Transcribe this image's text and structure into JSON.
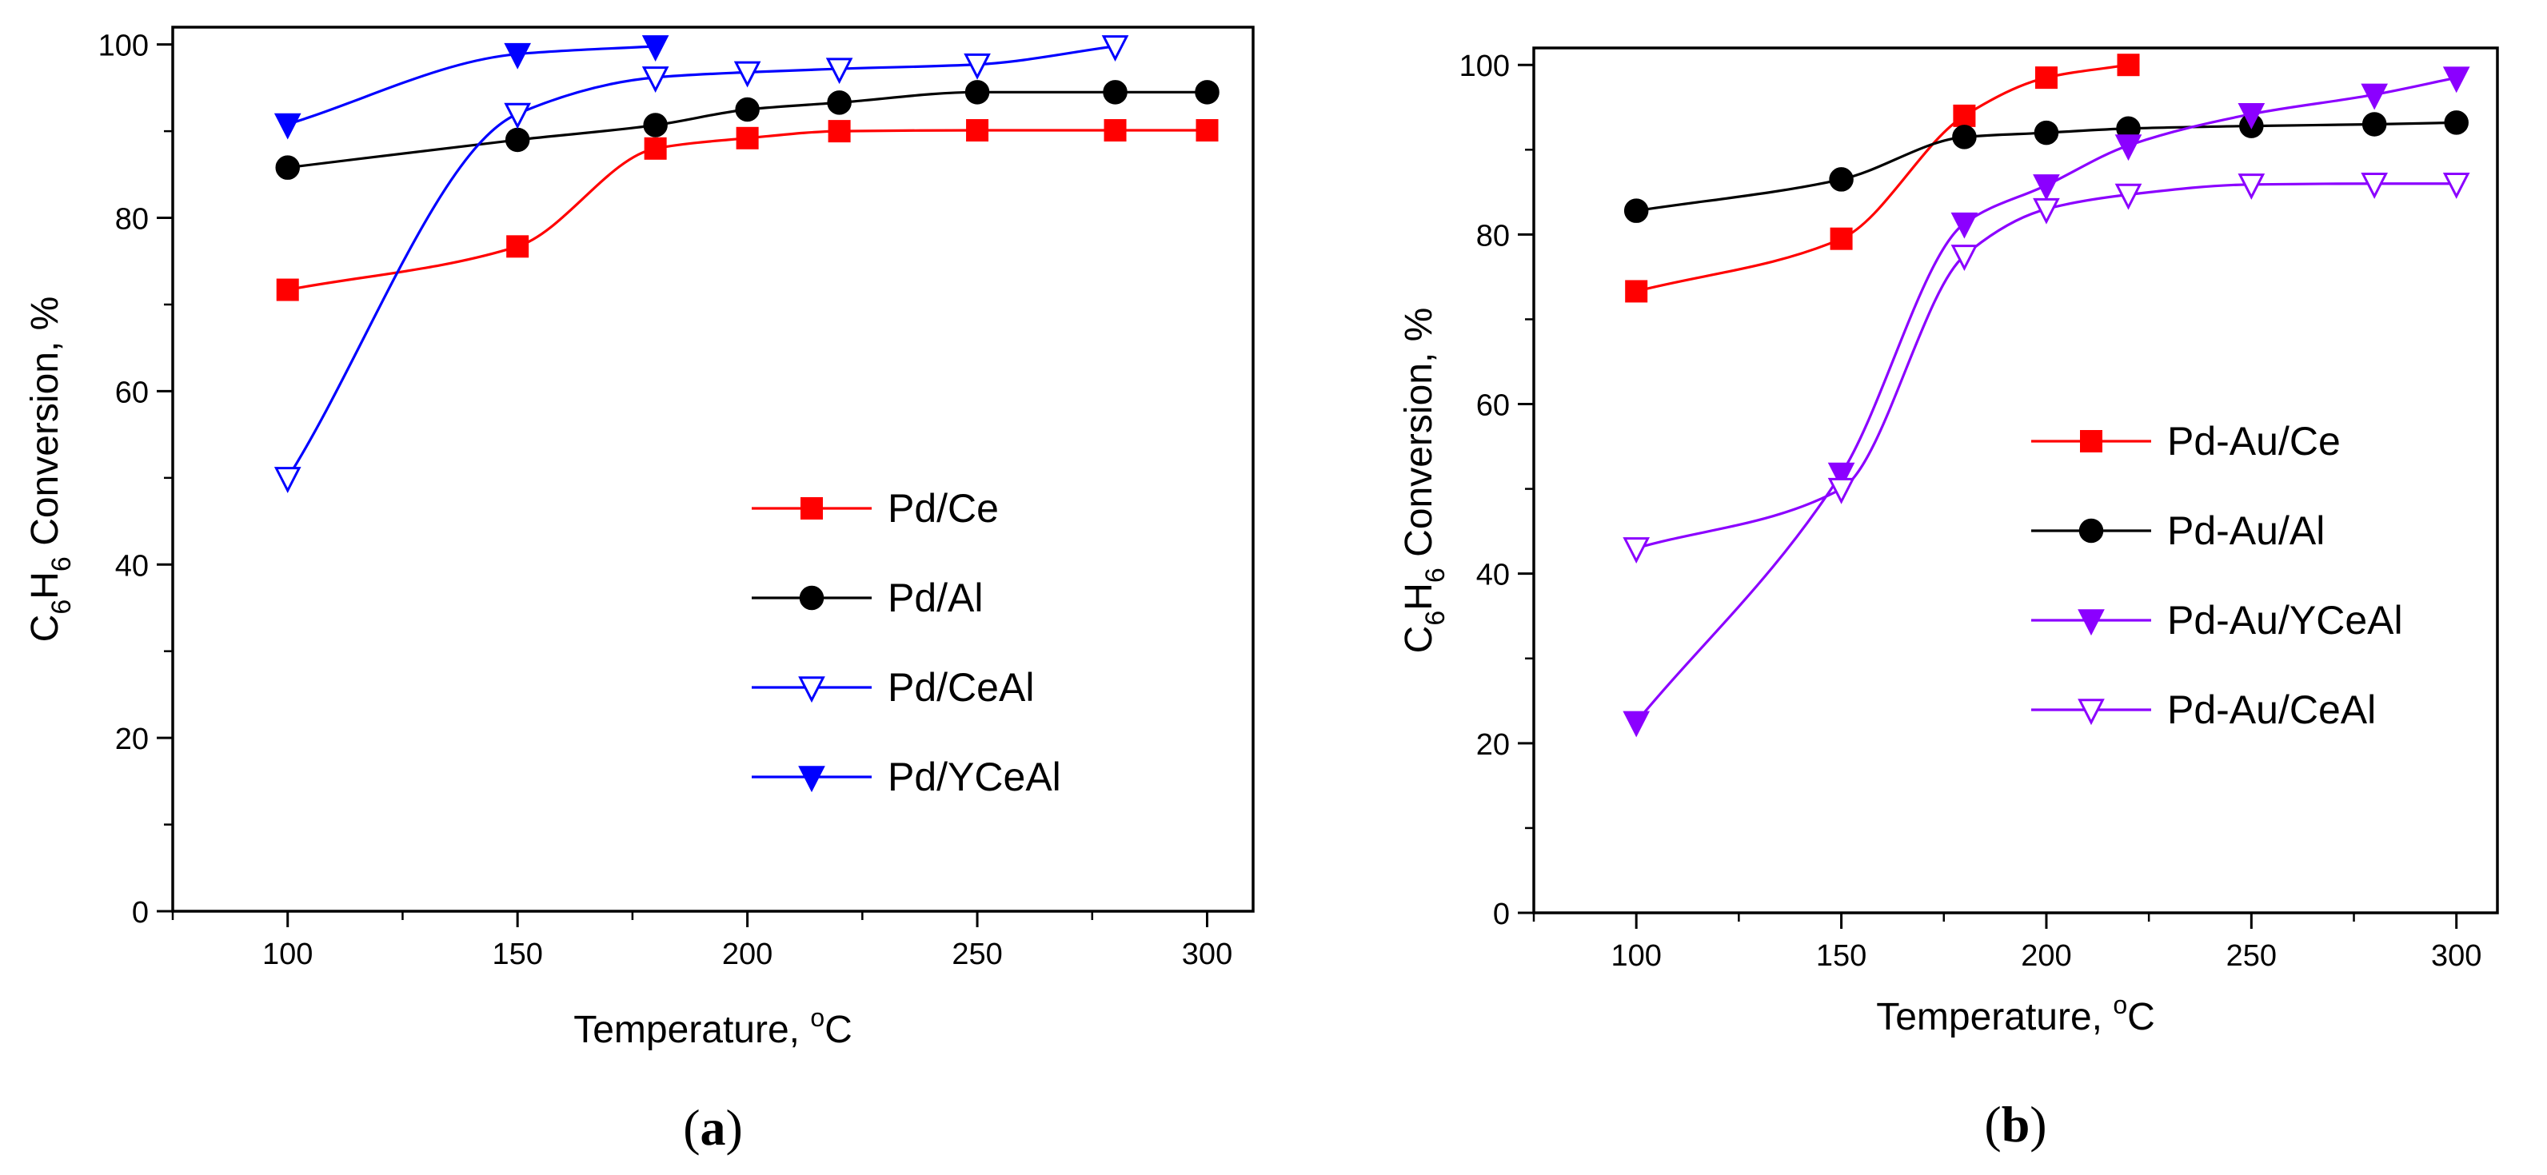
{
  "chart_data": [
    {
      "type": "line",
      "panel_label": "(a)",
      "panel_letter": "a",
      "xlabel": "Temperature, °C",
      "xlabel_main": "Temperature, ",
      "xlabel_unit": "C",
      "degree_symbol": "o",
      "ylabel": "C6H6 Conversion, %",
      "ylabel_parts": [
        "C",
        "6",
        "H",
        "6",
        " Conversion, %"
      ],
      "xlim": [
        75,
        310
      ],
      "ylim": [
        0,
        102
      ],
      "x_ticks": [
        100,
        150,
        200,
        250,
        300
      ],
      "y_ticks": [
        0,
        20,
        40,
        60,
        80,
        100
      ],
      "legend_position": "center-right",
      "series": [
        {
          "name": "Pd/Ce",
          "color": "#ff0000",
          "marker": "square",
          "filled": true,
          "x": [
            100,
            150,
            180,
            200,
            220,
            250,
            280,
            300
          ],
          "values": [
            71.7,
            76.7,
            88.0,
            89.2,
            90.0,
            90.1,
            90.1,
            90.1
          ]
        },
        {
          "name": "Pd/Al",
          "color": "#000000",
          "marker": "circle",
          "filled": true,
          "x": [
            100,
            150,
            180,
            200,
            220,
            250,
            280,
            300
          ],
          "values": [
            85.8,
            89.0,
            90.7,
            92.5,
            93.3,
            94.5,
            94.5,
            94.5
          ]
        },
        {
          "name": "Pd/CeAl",
          "color": "#0000ff",
          "marker": "triangle-down",
          "filled": false,
          "x": [
            100,
            150,
            180,
            200,
            220,
            250,
            280
          ],
          "values": [
            50.0,
            92.0,
            96.2,
            96.8,
            97.2,
            97.7,
            99.8
          ]
        },
        {
          "name": "Pd/YCeAl",
          "color": "#0000ff",
          "marker": "triangle-down",
          "filled": true,
          "x": [
            100,
            150,
            180
          ],
          "values": [
            90.8,
            98.9,
            99.8
          ]
        }
      ]
    },
    {
      "type": "line",
      "panel_label": "(b)",
      "panel_letter": "b",
      "xlabel": "Temperature, °C",
      "xlabel_main": "Temperature, ",
      "xlabel_unit": "C",
      "degree_symbol": "o",
      "ylabel": "C6H6 Conversion, %",
      "ylabel_parts": [
        "C",
        "6",
        "H",
        "6",
        " Conversion, %"
      ],
      "xlim": [
        75,
        310
      ],
      "ylim": [
        0,
        102
      ],
      "x_ticks": [
        100,
        150,
        200,
        250,
        300
      ],
      "y_ticks": [
        0,
        20,
        40,
        60,
        80,
        100
      ],
      "legend_position": "center",
      "series": [
        {
          "name": "Pd-Au/Ce",
          "color": "#ff0000",
          "marker": "square",
          "filled": true,
          "x": [
            100,
            150,
            180,
            200,
            220
          ],
          "values": [
            73.3,
            79.5,
            94.0,
            98.5,
            100.0
          ]
        },
        {
          "name": "Pd-Au/Al",
          "color": "#000000",
          "marker": "circle",
          "filled": true,
          "x": [
            100,
            150,
            180,
            200,
            220,
            250,
            280,
            300
          ],
          "values": [
            82.8,
            86.5,
            91.5,
            92.0,
            92.5,
            92.8,
            93.0,
            93.2
          ]
        },
        {
          "name": "Pd-Au/YCeAl",
          "color": "#8b00ff",
          "marker": "triangle-down",
          "filled": true,
          "x": [
            100,
            150,
            180,
            200,
            220,
            250,
            280,
            300
          ],
          "values": [
            22.5,
            51.8,
            81.3,
            85.8,
            90.5,
            94.2,
            96.5,
            98.5
          ]
        },
        {
          "name": "Pd-Au/CeAl",
          "color": "#8b00ff",
          "marker": "triangle-down",
          "filled": false,
          "x": [
            100,
            150,
            180,
            200,
            220,
            250,
            280,
            300
          ],
          "values": [
            43.0,
            50.0,
            77.5,
            83.0,
            84.7,
            85.9,
            86.0,
            86.0
          ]
        }
      ]
    }
  ]
}
